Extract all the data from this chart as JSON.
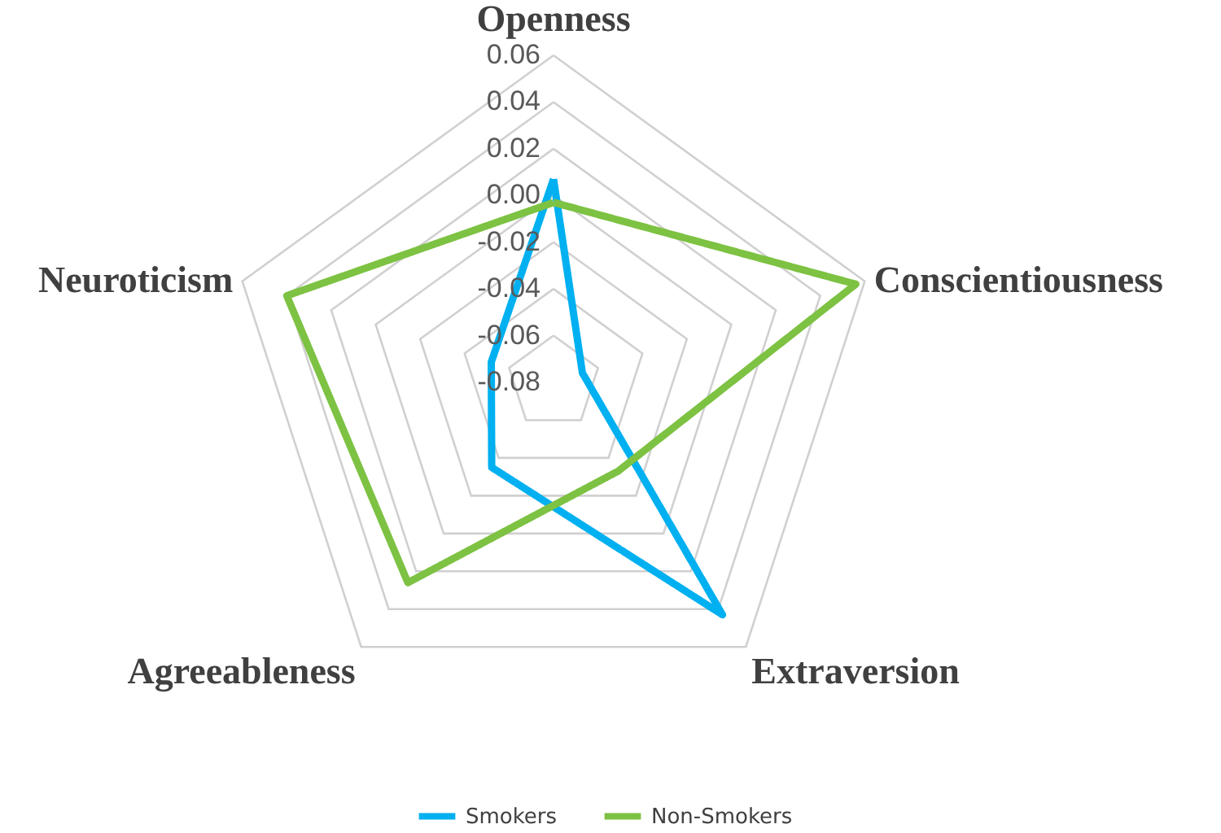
{
  "chart_data": {
    "type": "radar",
    "categories": [
      "Openness",
      "Conscientiousness",
      "Extraversion",
      "Agreeableness",
      "Neuroticism"
    ],
    "series": [
      {
        "name": "Smokers",
        "color": "#00b0f0",
        "values": [
          0.007,
          -0.067,
          0.043,
          -0.035,
          -0.052
        ]
      },
      {
        "name": "Non-Smokers",
        "color": "#7dc242",
        "values": [
          -0.003,
          0.056,
          -0.033,
          0.026,
          0.04
        ]
      }
    ],
    "ylim": [
      -0.08,
      0.06
    ],
    "yticks": [
      {
        "value": -0.08,
        "label": "-0.08"
      },
      -0.06,
      -0.04,
      -0.02,
      {
        "value": 0.0,
        "label": "0.00"
      },
      0.02,
      0.04,
      0.06
    ],
    "grid": true,
    "legend": "bottom",
    "marker": "none",
    "line_style": "solid"
  }
}
